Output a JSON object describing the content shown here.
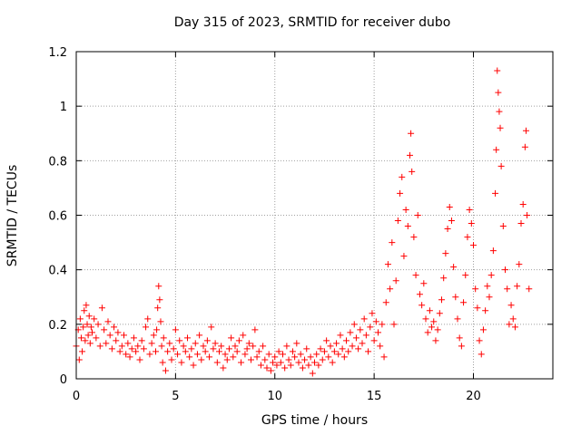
{
  "chart_data": {
    "type": "scatter",
    "title": "Day 315 of 2023, SRMTID for receiver dubo",
    "xlabel": "GPS time / hours",
    "ylabel": "SRMTID / TECUs",
    "xlim": [
      0,
      24
    ],
    "ylim": [
      0,
      1.2
    ],
    "xticks": [
      0,
      5,
      10,
      15,
      20
    ],
    "xtick_labels": [
      "0",
      "5",
      "10",
      "15",
      "20"
    ],
    "yticks": [
      0,
      0.2,
      0.4,
      0.6,
      0.8,
      1.0,
      1.2
    ],
    "ytick_labels": [
      "0",
      "0.2",
      "0.4",
      "0.6",
      "0.8",
      "1",
      "1.2"
    ],
    "grid": true,
    "marker": "+",
    "color": "#ff0000",
    "series": [
      {
        "name": "SRMTID",
        "points": [
          [
            0.0,
            0.12
          ],
          [
            0.1,
            0.18
          ],
          [
            0.15,
            0.07
          ],
          [
            0.2,
            0.22
          ],
          [
            0.25,
            0.15
          ],
          [
            0.3,
            0.1
          ],
          [
            0.35,
            0.19
          ],
          [
            0.4,
            0.25
          ],
          [
            0.45,
            0.14
          ],
          [
            0.5,
            0.27
          ],
          [
            0.55,
            0.2
          ],
          [
            0.6,
            0.16
          ],
          [
            0.65,
            0.23
          ],
          [
            0.7,
            0.13
          ],
          [
            0.75,
            0.19
          ],
          [
            0.8,
            0.17
          ],
          [
            0.9,
            0.22
          ],
          [
            1.0,
            0.15
          ],
          [
            1.1,
            0.2
          ],
          [
            1.2,
            0.12
          ],
          [
            1.3,
            0.26
          ],
          [
            1.4,
            0.18
          ],
          [
            1.5,
            0.13
          ],
          [
            1.6,
            0.21
          ],
          [
            1.7,
            0.16
          ],
          [
            1.8,
            0.11
          ],
          [
            1.9,
            0.19
          ],
          [
            2.0,
            0.14
          ],
          [
            2.1,
            0.17
          ],
          [
            2.2,
            0.1
          ],
          [
            2.3,
            0.12
          ],
          [
            2.4,
            0.16
          ],
          [
            2.5,
            0.09
          ],
          [
            2.6,
            0.13
          ],
          [
            2.7,
            0.08
          ],
          [
            2.8,
            0.11
          ],
          [
            2.9,
            0.15
          ],
          [
            3.0,
            0.1
          ],
          [
            3.1,
            0.12
          ],
          [
            3.2,
            0.07
          ],
          [
            3.3,
            0.14
          ],
          [
            3.4,
            0.11
          ],
          [
            3.5,
            0.19
          ],
          [
            3.6,
            0.22
          ],
          [
            3.7,
            0.09
          ],
          [
            3.8,
            0.13
          ],
          [
            3.9,
            0.16
          ],
          [
            4.0,
            0.1
          ],
          [
            4.05,
            0.18
          ],
          [
            4.1,
            0.26
          ],
          [
            4.15,
            0.34
          ],
          [
            4.2,
            0.29
          ],
          [
            4.25,
            0.21
          ],
          [
            4.3,
            0.12
          ],
          [
            4.35,
            0.06
          ],
          [
            4.4,
            0.15
          ],
          [
            4.5,
            0.03
          ],
          [
            4.6,
            0.1
          ],
          [
            4.7,
            0.13
          ],
          [
            4.8,
            0.07
          ],
          [
            4.9,
            0.11
          ],
          [
            5.0,
            0.18
          ],
          [
            5.1,
            0.09
          ],
          [
            5.2,
            0.14
          ],
          [
            5.3,
            0.06
          ],
          [
            5.4,
            0.12
          ],
          [
            5.5,
            0.1
          ],
          [
            5.6,
            0.15
          ],
          [
            5.7,
            0.08
          ],
          [
            5.8,
            0.11
          ],
          [
            5.9,
            0.05
          ],
          [
            6.0,
            0.13
          ],
          [
            6.1,
            0.09
          ],
          [
            6.2,
            0.16
          ],
          [
            6.3,
            0.07
          ],
          [
            6.4,
            0.12
          ],
          [
            6.5,
            0.1
          ],
          [
            6.6,
            0.14
          ],
          [
            6.7,
            0.08
          ],
          [
            6.8,
            0.19
          ],
          [
            6.9,
            0.11
          ],
          [
            7.0,
            0.13
          ],
          [
            7.1,
            0.06
          ],
          [
            7.2,
            0.1
          ],
          [
            7.3,
            0.12
          ],
          [
            7.4,
            0.04
          ],
          [
            7.5,
            0.09
          ],
          [
            7.6,
            0.07
          ],
          [
            7.7,
            0.11
          ],
          [
            7.8,
            0.15
          ],
          [
            7.9,
            0.08
          ],
          [
            8.0,
            0.12
          ],
          [
            8.1,
            0.1
          ],
          [
            8.2,
            0.14
          ],
          [
            8.3,
            0.06
          ],
          [
            8.4,
            0.16
          ],
          [
            8.5,
            0.09
          ],
          [
            8.6,
            0.11
          ],
          [
            8.7,
            0.13
          ],
          [
            8.8,
            0.07
          ],
          [
            8.9,
            0.12
          ],
          [
            9.0,
            0.18
          ],
          [
            9.1,
            0.08
          ],
          [
            9.2,
            0.1
          ],
          [
            9.3,
            0.05
          ],
          [
            9.4,
            0.12
          ],
          [
            9.5,
            0.07
          ],
          [
            9.6,
            0.04
          ],
          [
            9.7,
            0.09
          ],
          [
            9.8,
            0.03
          ],
          [
            9.9,
            0.06
          ],
          [
            10.0,
            0.08
          ],
          [
            10.1,
            0.05
          ],
          [
            10.2,
            0.1
          ],
          [
            10.3,
            0.06
          ],
          [
            10.4,
            0.09
          ],
          [
            10.5,
            0.04
          ],
          [
            10.6,
            0.12
          ],
          [
            10.7,
            0.07
          ],
          [
            10.8,
            0.05
          ],
          [
            10.9,
            0.1
          ],
          [
            11.0,
            0.08
          ],
          [
            11.1,
            0.13
          ],
          [
            11.2,
            0.06
          ],
          [
            11.3,
            0.09
          ],
          [
            11.4,
            0.04
          ],
          [
            11.5,
            0.07
          ],
          [
            11.6,
            0.11
          ],
          [
            11.7,
            0.05
          ],
          [
            11.8,
            0.08
          ],
          [
            11.9,
            0.02
          ],
          [
            12.0,
            0.06
          ],
          [
            12.1,
            0.09
          ],
          [
            12.2,
            0.05
          ],
          [
            12.3,
            0.11
          ],
          [
            12.4,
            0.07
          ],
          [
            12.5,
            0.1
          ],
          [
            12.6,
            0.14
          ],
          [
            12.7,
            0.08
          ],
          [
            12.8,
            0.12
          ],
          [
            12.9,
            0.06
          ],
          [
            13.0,
            0.1
          ],
          [
            13.1,
            0.13
          ],
          [
            13.2,
            0.09
          ],
          [
            13.3,
            0.16
          ],
          [
            13.4,
            0.11
          ],
          [
            13.5,
            0.08
          ],
          [
            13.6,
            0.14
          ],
          [
            13.7,
            0.1
          ],
          [
            13.8,
            0.17
          ],
          [
            13.9,
            0.12
          ],
          [
            14.0,
            0.2
          ],
          [
            14.1,
            0.15
          ],
          [
            14.2,
            0.11
          ],
          [
            14.3,
            0.18
          ],
          [
            14.4,
            0.13
          ],
          [
            14.5,
            0.22
          ],
          [
            14.6,
            0.16
          ],
          [
            14.7,
            0.1
          ],
          [
            14.8,
            0.19
          ],
          [
            14.9,
            0.24
          ],
          [
            15.0,
            0.14
          ],
          [
            15.1,
            0.21
          ],
          [
            15.2,
            0.17
          ],
          [
            15.3,
            0.12
          ],
          [
            15.4,
            0.2
          ],
          [
            15.5,
            0.08
          ],
          [
            15.6,
            0.28
          ],
          [
            15.7,
            0.42
          ],
          [
            15.8,
            0.33
          ],
          [
            15.9,
            0.5
          ],
          [
            16.0,
            0.2
          ],
          [
            16.1,
            0.36
          ],
          [
            16.2,
            0.58
          ],
          [
            16.3,
            0.68
          ],
          [
            16.4,
            0.74
          ],
          [
            16.5,
            0.45
          ],
          [
            16.6,
            0.62
          ],
          [
            16.7,
            0.56
          ],
          [
            16.8,
            0.82
          ],
          [
            16.85,
            0.9
          ],
          [
            16.9,
            0.76
          ],
          [
            17.0,
            0.52
          ],
          [
            17.1,
            0.38
          ],
          [
            17.2,
            0.6
          ],
          [
            17.3,
            0.31
          ],
          [
            17.4,
            0.27
          ],
          [
            17.5,
            0.35
          ],
          [
            17.6,
            0.22
          ],
          [
            17.7,
            0.17
          ],
          [
            17.8,
            0.25
          ],
          [
            17.9,
            0.19
          ],
          [
            18.0,
            0.21
          ],
          [
            18.1,
            0.14
          ],
          [
            18.2,
            0.18
          ],
          [
            18.3,
            0.24
          ],
          [
            18.4,
            0.29
          ],
          [
            18.5,
            0.37
          ],
          [
            18.6,
            0.46
          ],
          [
            18.7,
            0.55
          ],
          [
            18.8,
            0.63
          ],
          [
            18.9,
            0.58
          ],
          [
            19.0,
            0.41
          ],
          [
            19.1,
            0.3
          ],
          [
            19.2,
            0.22
          ],
          [
            19.3,
            0.15
          ],
          [
            19.4,
            0.12
          ],
          [
            19.5,
            0.28
          ],
          [
            19.6,
            0.38
          ],
          [
            19.7,
            0.52
          ],
          [
            19.8,
            0.62
          ],
          [
            19.9,
            0.57
          ],
          [
            20.0,
            0.49
          ],
          [
            20.1,
            0.33
          ],
          [
            20.2,
            0.26
          ],
          [
            20.3,
            0.14
          ],
          [
            20.4,
            0.09
          ],
          [
            20.5,
            0.18
          ],
          [
            20.6,
            0.25
          ],
          [
            20.7,
            0.34
          ],
          [
            20.8,
            0.3
          ],
          [
            20.9,
            0.38
          ],
          [
            21.0,
            0.47
          ],
          [
            21.1,
            0.68
          ],
          [
            21.15,
            0.84
          ],
          [
            21.2,
            1.13
          ],
          [
            21.25,
            1.05
          ],
          [
            21.3,
            0.98
          ],
          [
            21.35,
            0.92
          ],
          [
            21.4,
            0.78
          ],
          [
            21.5,
            0.56
          ],
          [
            21.6,
            0.4
          ],
          [
            21.7,
            0.33
          ],
          [
            21.8,
            0.2
          ],
          [
            21.9,
            0.27
          ],
          [
            22.0,
            0.22
          ],
          [
            22.1,
            0.19
          ],
          [
            22.2,
            0.34
          ],
          [
            22.3,
            0.42
          ],
          [
            22.4,
            0.57
          ],
          [
            22.5,
            0.64
          ],
          [
            22.6,
            0.85
          ],
          [
            22.65,
            0.91
          ],
          [
            22.7,
            0.6
          ],
          [
            22.8,
            0.33
          ]
        ]
      }
    ]
  }
}
